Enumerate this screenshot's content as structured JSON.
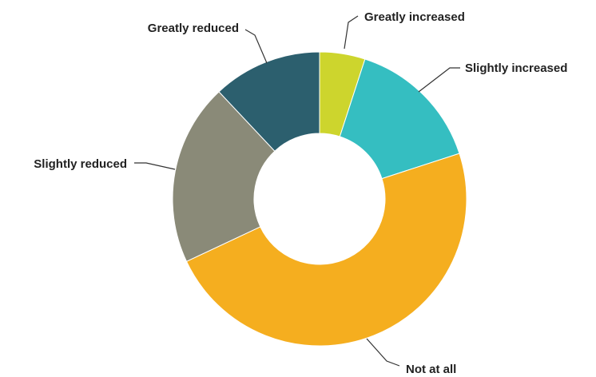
{
  "chart_data": {
    "type": "pie",
    "variant": "donut",
    "title": "",
    "legend": "none",
    "slices": [
      {
        "label": "Greatly increased",
        "value": 5,
        "color": "#CDD52D"
      },
      {
        "label": "Slightly increased",
        "value": 15,
        "color": "#35BEC1"
      },
      {
        "label": "Not at all",
        "value": 48,
        "color": "#F5AE1F"
      },
      {
        "label": "Slightly reduced",
        "value": 20,
        "color": "#8A8A78"
      },
      {
        "label": "Greatly reduced",
        "value": 12,
        "color": "#2C5F6E"
      }
    ]
  }
}
